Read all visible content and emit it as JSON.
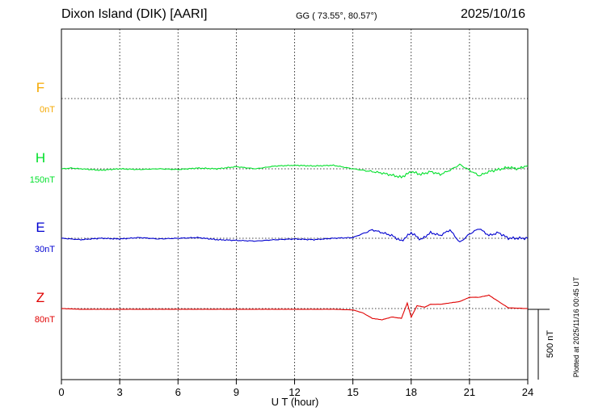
{
  "header": {
    "station": "Dixon Island (DIK)  [AARI]",
    "coords": "GG ( 73.55°,  80.57°)",
    "date": "2025/10/16"
  },
  "footer": {
    "plotted_note": "Plotted at 2025/11/16 00:45 UT"
  },
  "scale_bar": {
    "label": "500 nT",
    "value_nT": 500
  },
  "colors": {
    "F": "#f5a800",
    "H": "#00e02a",
    "E": "#0000d0",
    "Z": "#e00000",
    "grid": "#000000"
  },
  "chart_data": {
    "type": "line",
    "xlabel": "U T (hour)",
    "xlim": [
      0,
      24
    ],
    "xticks": [
      0,
      3,
      6,
      9,
      12,
      15,
      18,
      21,
      24
    ],
    "x_tick_labels": [
      "0",
      "3",
      "6",
      "9",
      "12",
      "15",
      "18",
      "21",
      "24"
    ],
    "grid": true,
    "series": [
      {
        "name": "F",
        "baseline_label": "0nT",
        "color": "#f5a800",
        "points": []
      },
      {
        "name": "H",
        "baseline_label": "150nT",
        "color": "#00e02a",
        "points": [
          [
            0,
            0
          ],
          [
            0.5,
            5
          ],
          [
            1,
            0
          ],
          [
            2,
            -10
          ],
          [
            3,
            0
          ],
          [
            4,
            -5
          ],
          [
            5,
            0
          ],
          [
            6,
            -5
          ],
          [
            7,
            5
          ],
          [
            8,
            0
          ],
          [
            9,
            15
          ],
          [
            10,
            0
          ],
          [
            11,
            20
          ],
          [
            12,
            25
          ],
          [
            13,
            20
          ],
          [
            14,
            25
          ],
          [
            15,
            0
          ],
          [
            16,
            -20
          ],
          [
            16.5,
            -30
          ],
          [
            17,
            -45
          ],
          [
            17.5,
            -60
          ],
          [
            18,
            -20
          ],
          [
            18.5,
            -40
          ],
          [
            19,
            -20
          ],
          [
            19.5,
            -40
          ],
          [
            20,
            -10
          ],
          [
            20.5,
            30
          ],
          [
            21,
            -10
          ],
          [
            21.5,
            -50
          ],
          [
            22,
            -20
          ],
          [
            23,
            10
          ],
          [
            23.5,
            0
          ],
          [
            24,
            25
          ]
        ]
      },
      {
        "name": "E",
        "baseline_label": "30nT",
        "color": "#0000d0",
        "points": [
          [
            0,
            0
          ],
          [
            1,
            -10
          ],
          [
            2,
            0
          ],
          [
            3,
            -5
          ],
          [
            4,
            5
          ],
          [
            5,
            -5
          ],
          [
            6,
            0
          ],
          [
            7,
            5
          ],
          [
            8,
            -10
          ],
          [
            9,
            -15
          ],
          [
            10,
            -20
          ],
          [
            11,
            -10
          ],
          [
            12,
            -5
          ],
          [
            13,
            -10
          ],
          [
            14,
            0
          ],
          [
            15,
            5
          ],
          [
            16,
            60
          ],
          [
            17,
            20
          ],
          [
            17.5,
            -20
          ],
          [
            18,
            40
          ],
          [
            18.5,
            -10
          ],
          [
            19,
            40
          ],
          [
            19.5,
            20
          ],
          [
            20,
            60
          ],
          [
            20.5,
            -30
          ],
          [
            21,
            30
          ],
          [
            21.5,
            70
          ],
          [
            22,
            20
          ],
          [
            22.5,
            40
          ],
          [
            23,
            0
          ],
          [
            24,
            0
          ]
        ]
      },
      {
        "name": "Z",
        "baseline_label": "80nT",
        "color": "#e00000",
        "points": [
          [
            0,
            0
          ],
          [
            1,
            -5
          ],
          [
            2,
            -5
          ],
          [
            3,
            -5
          ],
          [
            4,
            -5
          ],
          [
            5,
            -5
          ],
          [
            6,
            -5
          ],
          [
            7,
            -5
          ],
          [
            8,
            -5
          ],
          [
            9,
            -5
          ],
          [
            10,
            -5
          ],
          [
            11,
            -5
          ],
          [
            12,
            -5
          ],
          [
            13,
            -5
          ],
          [
            14,
            -5
          ],
          [
            15,
            -10
          ],
          [
            15.5,
            -30
          ],
          [
            16,
            -70
          ],
          [
            16.5,
            -80
          ],
          [
            17,
            -60
          ],
          [
            17.5,
            -70
          ],
          [
            17.8,
            40
          ],
          [
            18,
            -60
          ],
          [
            18.3,
            20
          ],
          [
            18.7,
            10
          ],
          [
            19,
            30
          ],
          [
            19.5,
            30
          ],
          [
            20,
            40
          ],
          [
            20.5,
            50
          ],
          [
            21,
            80
          ],
          [
            21.5,
            80
          ],
          [
            22,
            95
          ],
          [
            22.5,
            50
          ],
          [
            23,
            5
          ],
          [
            24,
            0
          ]
        ]
      }
    ],
    "panel_y_range_nT": 1000
  }
}
